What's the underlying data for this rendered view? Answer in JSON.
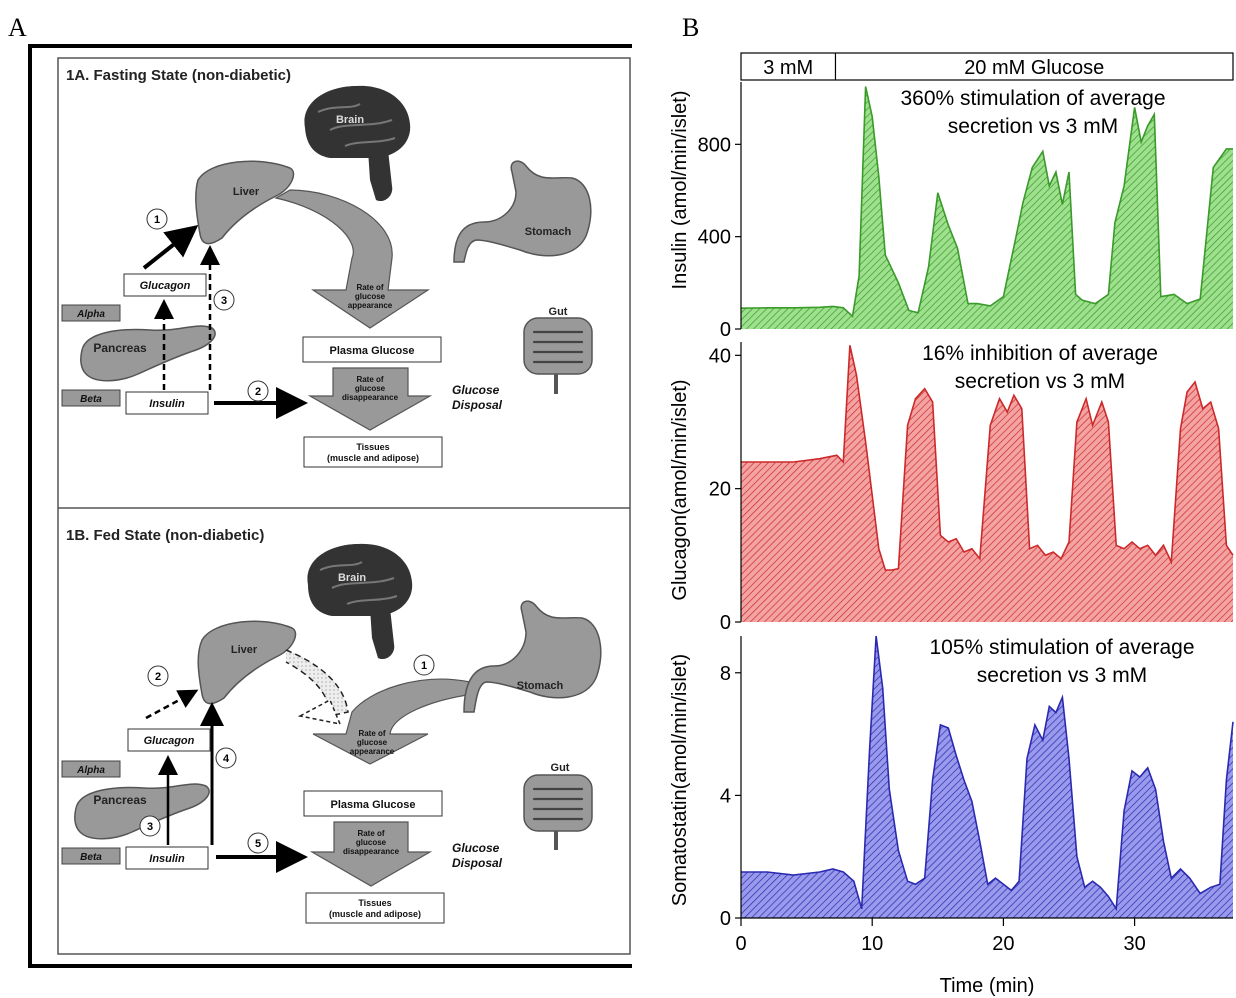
{
  "panel_labels": {
    "a": "A",
    "b": "B"
  },
  "diagram": {
    "fasting": {
      "title": "1A. Fasting State (non-diabetic)",
      "brain": "Brain",
      "liver": "Liver",
      "stomach": "Stomach",
      "gut": "Gut",
      "glucagon": "Glucagon",
      "insulin": "Insulin",
      "alpha": "Alpha",
      "beta": "Beta",
      "pancreas": "Pancreas",
      "appearance_lines": [
        "Rate of",
        "glucose",
        "appearance"
      ],
      "plasma": "Plasma Glucose",
      "disappearance_lines": [
        "Rate of",
        "glucose",
        "disappearance"
      ],
      "disposal_lines": [
        "Glucose",
        "Disposal"
      ],
      "tissues_lines": [
        "Tissues",
        "(muscle and adipose)"
      ],
      "step1": "1",
      "step2": "2",
      "step3": "3"
    },
    "fed": {
      "title": "1B. Fed State (non-diabetic)",
      "brain": "Brain",
      "liver": "Liver",
      "stomach": "Stomach",
      "gut": "Gut",
      "glucagon": "Glucagon",
      "insulin": "Insulin",
      "alpha": "Alpha",
      "beta": "Beta",
      "pancreas": "Pancreas",
      "appearance_lines": [
        "Rate of",
        "glucose",
        "appearance"
      ],
      "plasma": "Plasma Glucose",
      "disappearance_lines": [
        "Rate of",
        "glucose",
        "disappearance"
      ],
      "disposal_lines": [
        "Glucose",
        "Disposal"
      ],
      "tissues_lines": [
        "Tissues",
        "(muscle and adipose)"
      ],
      "step1": "1",
      "step2": "2",
      "step3": "3",
      "step4": "4",
      "step5": "5"
    }
  },
  "chart_data": {
    "type": "area",
    "xlabel": "Time (min)",
    "xlim": [
      0,
      37.5
    ],
    "xticks": [
      0,
      10,
      20,
      30
    ],
    "condition_bar": {
      "low": "3 mM",
      "high": "20 mM Glucose",
      "switch_at": 7.2
    },
    "series": [
      {
        "name": "Insulin",
        "ylabel": "Insulin (amol/min/islet)",
        "ylim": [
          0,
          1070
        ],
        "yticks": [
          0,
          400,
          800
        ],
        "color": "#3a9a2a",
        "fill": "#8fd67f",
        "annotation_lines": [
          "360% stimulation of average",
          "secretion vs 3 mM"
        ],
        "x": [
          0,
          2,
          4,
          6,
          7,
          7.8,
          8.5,
          9,
          9.5,
          10,
          10.5,
          11,
          12,
          12.8,
          13.5,
          14.3,
          15,
          15.8,
          16.5,
          17.3,
          18,
          19,
          20,
          21,
          21.5,
          22.2,
          23,
          23.5,
          24,
          24.5,
          25,
          25.5,
          26,
          27,
          28,
          28.5,
          29.2,
          30,
          30.5,
          31,
          31.5,
          32,
          33,
          34,
          35,
          36,
          37,
          37.5
        ],
        "values": [
          90,
          92,
          92,
          94,
          98,
          92,
          55,
          230,
          1050,
          920,
          660,
          320,
          200,
          80,
          70,
          270,
          590,
          450,
          350,
          110,
          110,
          100,
          140,
          410,
          550,
          700,
          770,
          620,
          680,
          540,
          680,
          150,
          125,
          110,
          150,
          460,
          620,
          960,
          810,
          880,
          930,
          140,
          150,
          110,
          130,
          700,
          780,
          780
        ]
      },
      {
        "name": "Glucagon",
        "ylabel": "Glucagon(amol/min/islet)",
        "ylim": [
          0,
          42
        ],
        "yticks": [
          0,
          20,
          40
        ],
        "color": "#cc2a2a",
        "fill": "#ec8a8a",
        "annotation_lines": [
          "16% inhibition of average",
          "secretion vs 3 mM"
        ],
        "x": [
          0,
          2,
          4,
          6,
          7.3,
          7.8,
          8.3,
          8.8,
          9.5,
          10,
          10.5,
          11,
          11.5,
          12,
          12.7,
          13.3,
          14,
          14.6,
          15.2,
          15.8,
          16.4,
          17,
          17.6,
          18.2,
          19,
          19.7,
          20.3,
          20.8,
          21.4,
          22,
          22.6,
          23.2,
          23.8,
          24.4,
          25,
          25.6,
          26.3,
          26.8,
          27.5,
          28,
          28.6,
          29.2,
          29.8,
          30.4,
          31,
          31.6,
          32.2,
          32.8,
          33.5,
          34,
          34.6,
          35.2,
          35.8,
          36.4,
          37,
          37.5
        ],
        "values": [
          24,
          24,
          24,
          24.5,
          25,
          24,
          41.5,
          37,
          27,
          19,
          11,
          7.8,
          7.8,
          8,
          29.5,
          33.5,
          35,
          33,
          13,
          12,
          12.5,
          10.5,
          11,
          9.5,
          29.5,
          33.5,
          31.5,
          34,
          32,
          11,
          11.5,
          10,
          10.5,
          9.5,
          12,
          30,
          33.5,
          29.5,
          33,
          30,
          11.5,
          11,
          12,
          11,
          11.5,
          10,
          11.5,
          9,
          29,
          34.5,
          36,
          32,
          33,
          29,
          11.5,
          10
        ]
      },
      {
        "name": "Somatostatin",
        "ylabel": "Somatostatin(amol/min/islet)",
        "ylim": [
          0,
          9.2
        ],
        "yticks": [
          0,
          4,
          8
        ],
        "color": "#2a2ab0",
        "fill": "#7a7ae0",
        "annotation_lines": [
          "105% stimulation of average",
          "secretion vs 3 mM"
        ],
        "x": [
          0,
          2,
          4,
          6,
          7,
          7.8,
          8.6,
          9.2,
          9.8,
          10.3,
          10.8,
          11.3,
          12,
          12.7,
          13.3,
          14,
          14.6,
          15.2,
          15.8,
          16.4,
          17,
          17.6,
          18.2,
          18.8,
          19.4,
          20,
          20.6,
          21.2,
          21.8,
          22.4,
          23,
          23.5,
          24,
          24.5,
          25,
          25.6,
          26.2,
          26.8,
          27.4,
          28,
          28.6,
          29.2,
          29.8,
          30.4,
          31,
          31.6,
          32.2,
          32.8,
          33.5,
          34.2,
          35,
          35.8,
          36.5,
          37,
          37.5
        ],
        "values": [
          1.5,
          1.5,
          1.4,
          1.5,
          1.6,
          1.5,
          1.2,
          0.3,
          5.5,
          9.2,
          7.5,
          4.2,
          2.2,
          1.2,
          1.1,
          1.3,
          4.5,
          6.3,
          6.2,
          5.3,
          4.5,
          3.8,
          2.5,
          1.1,
          1.3,
          1.1,
          0.9,
          1.2,
          5.2,
          6.3,
          5.8,
          6.9,
          6.7,
          7.2,
          5.2,
          2.0,
          1.0,
          1.2,
          1.0,
          0.7,
          0.3,
          3.5,
          4.8,
          4.6,
          4.9,
          4.2,
          2.5,
          1.3,
          1.6,
          1.3,
          0.8,
          1.0,
          1.1,
          4.5,
          6.4
        ]
      }
    ]
  }
}
